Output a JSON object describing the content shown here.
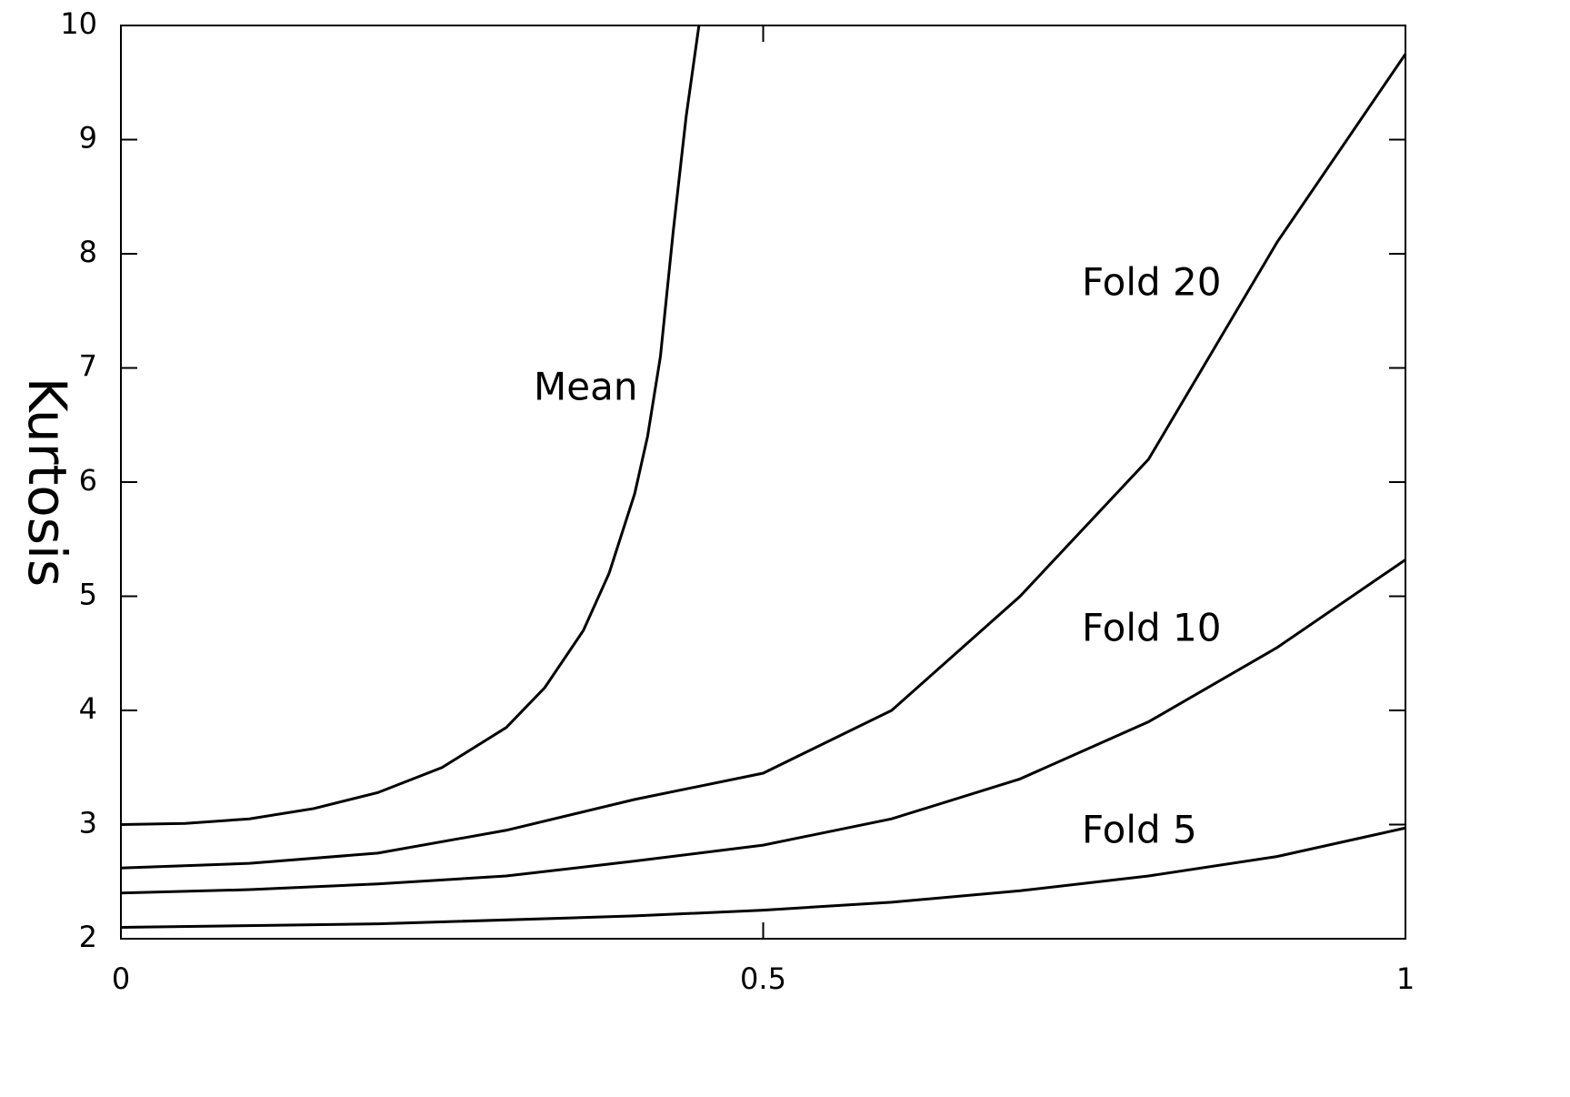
{
  "chart_data": {
    "type": "line",
    "y_label": "Kurtosis",
    "xlim": [
      0,
      1
    ],
    "xticks": [
      0,
      0.5,
      1
    ],
    "ylim": [
      2,
      10
    ],
    "yticks": [
      2,
      3,
      4,
      5,
      6,
      7,
      8,
      9,
      10
    ],
    "series": [
      {
        "name": "Mean",
        "color": "#000000",
        "x": [
          0,
          0.05,
          0.1,
          0.15,
          0.2,
          0.25,
          0.3,
          0.33,
          0.36,
          0.38,
          0.4,
          0.41,
          0.42,
          0.43,
          0.44,
          0.45
        ],
        "values": [
          3.0,
          3.01,
          3.05,
          3.14,
          3.28,
          3.5,
          3.85,
          4.2,
          4.7,
          5.2,
          5.9,
          6.4,
          7.1,
          8.2,
          9.2,
          10
        ]
      },
      {
        "name": "Fold 20",
        "color": "#000000",
        "x": [
          0,
          0.1,
          0.2,
          0.3,
          0.4,
          0.5,
          0.6,
          0.7,
          0.8,
          0.9,
          1
        ],
        "values": [
          2.62,
          2.66,
          2.75,
          2.95,
          3.22,
          3.45,
          4.0,
          5.0,
          6.2,
          8.1,
          9.75
        ]
      },
      {
        "name": "Fold 10",
        "color": "#000000",
        "x": [
          0,
          0.1,
          0.2,
          0.3,
          0.4,
          0.5,
          0.6,
          0.7,
          0.8,
          0.9,
          1
        ],
        "values": [
          2.4,
          2.43,
          2.48,
          2.55,
          2.68,
          2.82,
          3.05,
          3.4,
          3.9,
          4.55,
          5.32
        ]
      },
      {
        "name": "Fold 5",
        "color": "#000000",
        "x": [
          0,
          0.2,
          0.4,
          0.5,
          0.6,
          0.7,
          0.8,
          0.9,
          1
        ],
        "values": [
          2.1,
          2.13,
          2.2,
          2.25,
          2.32,
          2.42,
          2.55,
          2.72,
          2.97
        ]
      }
    ]
  }
}
